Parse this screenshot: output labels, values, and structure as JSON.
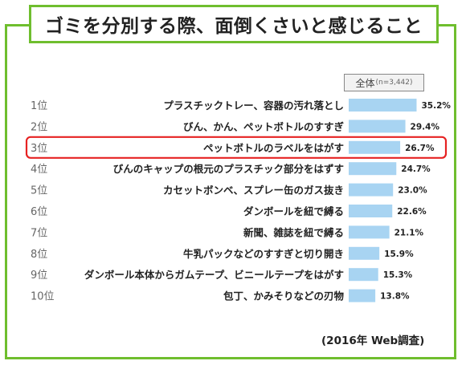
{
  "title": "ゴミを分別する際、面倒くさいと感じること",
  "total_label": "全体",
  "total_n": "(n=3,442)",
  "footnote": "(2016年 Web調査)",
  "highlight_rank": 3,
  "colors": {
    "frame": "#6fbe2e",
    "bar": "#a8d4f2",
    "highlight": "#e62222"
  },
  "chart_data": {
    "type": "bar",
    "orientation": "horizontal",
    "ranks": [
      "1位",
      "2位",
      "3位",
      "4位",
      "5位",
      "6位",
      "7位",
      "8位",
      "9位",
      "10位"
    ],
    "categories": [
      "プラスチックトレー、容器の汚れ落とし",
      "びん、かん、ペットボトルのすすぎ",
      "ペットボトルのラベルをはがす",
      "びんのキャップの根元のプラスチック部分をはずす",
      "カセットボンベ、スプレー缶のガス抜き",
      "ダンボールを紐で縛る",
      "新聞、雑誌を紐で縛る",
      "牛乳パックなどのすすぎと切り開き",
      "ダンボール本体からガムテープ、ビニールテープをはがす",
      "包丁、かみそりなどの刃物"
    ],
    "values": [
      35.2,
      29.4,
      26.7,
      24.7,
      23.0,
      22.6,
      21.1,
      15.9,
      15.3,
      13.8
    ],
    "value_labels": [
      "35.2%",
      "29.4%",
      "26.7%",
      "24.7%",
      "23.0%",
      "22.6%",
      "21.1%",
      "15.9%",
      "15.3%",
      "13.8%"
    ],
    "unit": "%"
  }
}
